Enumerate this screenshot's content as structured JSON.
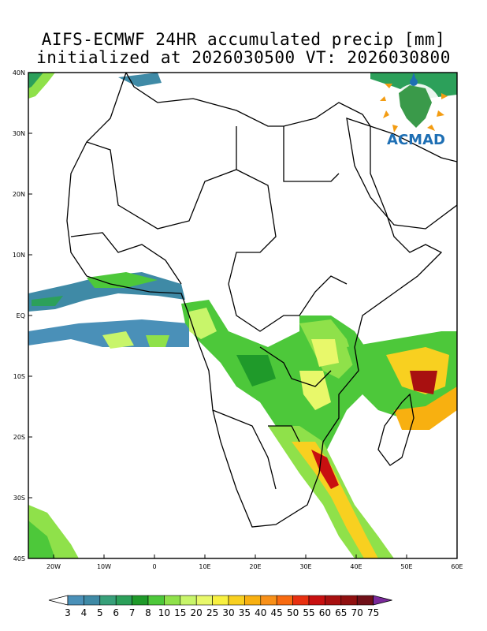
{
  "title": {
    "line1": "AIFS-ECMWF 24HR accumulated precip [mm]",
    "line2": "initialized at 2026030500 VT: 2026030800"
  },
  "logo": {
    "text": "ACMAD"
  },
  "axes": {
    "lat_labels": [
      "40N",
      "30N",
      "20N",
      "10N",
      "EQ",
      "10S",
      "20S",
      "30S",
      "40S"
    ],
    "lon_labels": [
      "20W",
      "10W",
      "0",
      "10E",
      "20E",
      "30E",
      "40E",
      "50E",
      "60E"
    ],
    "lon_range": [
      -25,
      60
    ],
    "lat_range": [
      -40,
      40
    ]
  },
  "colorbar": {
    "labels": [
      "3",
      "4",
      "5",
      "6",
      "7",
      "8",
      "10",
      "15",
      "20",
      "25",
      "30",
      "35",
      "40",
      "45",
      "50",
      "55",
      "60",
      "65",
      "70",
      "75"
    ],
    "colors": [
      "#4a90b8",
      "#3f8aa6",
      "#38a07a",
      "#2ca05a",
      "#1f9a2a",
      "#4dc83a",
      "#8fe14a",
      "#c8f56a",
      "#e8f86a",
      "#f8f040",
      "#f8d020",
      "#f8b010",
      "#f89018",
      "#f86a10",
      "#e83010",
      "#c81010",
      "#a81010",
      "#901010",
      "#701018",
      "#7a2a9a"
    ]
  },
  "colors": {
    "land_outline": "#000000",
    "ocean": "#ffffff"
  }
}
